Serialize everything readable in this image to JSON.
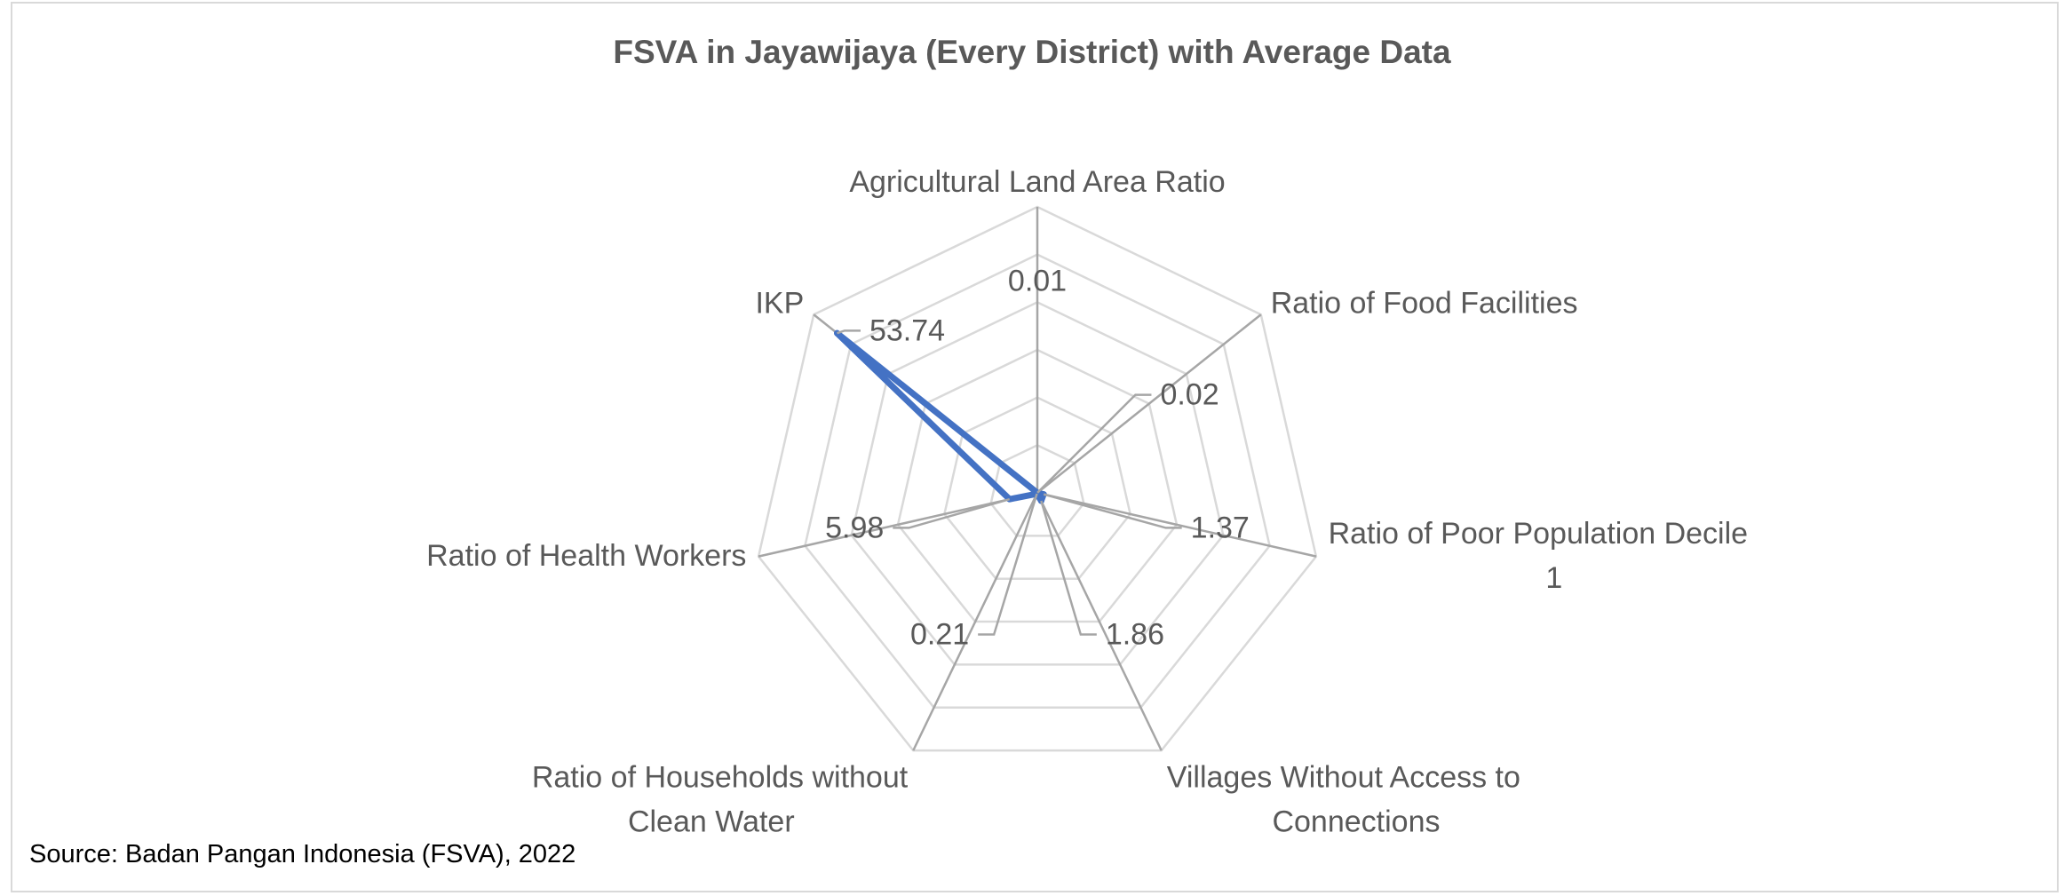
{
  "chart_data": {
    "type": "radar",
    "title": "FSVA in Jayawijaya (Every District) with Average Data",
    "axes": [
      {
        "label": [
          "Agricultural Land Area Ratio"
        ]
      },
      {
        "label": [
          "Ratio of Food Facilities"
        ]
      },
      {
        "label": [
          "Ratio of Poor Population Decile",
          "1"
        ]
      },
      {
        "label": [
          "Villages Without Access to",
          "Connections"
        ]
      },
      {
        "label": [
          "Ratio of Households without",
          "Clean Water"
        ]
      },
      {
        "label": [
          "Ratio of Health Workers"
        ]
      },
      {
        "label": [
          "IKP"
        ]
      }
    ],
    "series": [
      {
        "values": [
          0.01,
          0.02,
          1.37,
          1.86,
          0.21,
          5.98,
          53.74
        ],
        "data_labels": [
          "0.01",
          "0.02",
          "1.37",
          "1.86",
          "0.21",
          "5.98",
          "53.74"
        ],
        "color": "#4472c4"
      }
    ],
    "rlim": [
      0,
      60
    ],
    "grid_rings": 6,
    "grid_color": "#d9d9d9",
    "spoke_color": "#a6a6a6"
  },
  "source": "Source: Badan Pangan Indonesia (FSVA), 2022"
}
